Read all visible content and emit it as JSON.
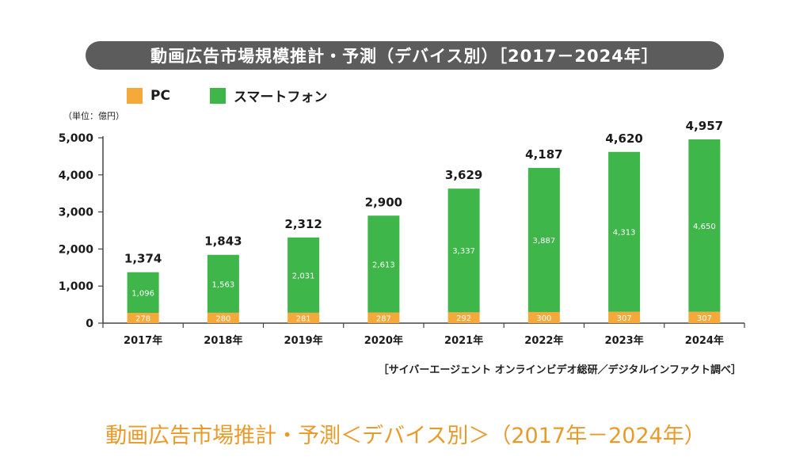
{
  "header": {
    "title": "動画広告市場規模推計・予測（デバイス別）［2017－2024年］"
  },
  "legend": [
    {
      "label": "PC",
      "color": "#f5a93b"
    },
    {
      "label": "スマートフォン",
      "color": "#3eb649"
    }
  ],
  "unit_label": "（単位：億円）",
  "source_text": "［サイバーエージェント オンラインビデオ総研／デジタルインファクト調べ］",
  "caption_text": "動画広告市場推計・予測＜デバイス別＞（2017年－2024年）",
  "chart_data": {
    "type": "bar",
    "stacked": true,
    "categories": [
      "2017年",
      "2018年",
      "2019年",
      "2020年",
      "2021年",
      "2022年",
      "2023年",
      "2024年"
    ],
    "series": [
      {
        "name": "PC",
        "color": "#f5a93b",
        "values": [
          278,
          280,
          281,
          287,
          292,
          300,
          307,
          307
        ]
      },
      {
        "name": "スマートフォン",
        "color": "#3eb649",
        "values": [
          1096,
          1563,
          2031,
          2613,
          3337,
          3887,
          4313,
          4650
        ]
      }
    ],
    "totals": [
      "1,374",
      "1,843",
      "2,312",
      "2,900",
      "3,629",
      "4,187",
      "4,620",
      "4,957"
    ],
    "segment_labels": {
      "PC": [
        "278",
        "280",
        "281",
        "287",
        "292",
        "300",
        "307",
        "307"
      ],
      "スマートフォン": [
        "1,096",
        "1,563",
        "2,031",
        "2,613",
        "3,337",
        "3,887",
        "4,313",
        "4,650"
      ]
    },
    "y_ticks": [
      "0",
      "1,000",
      "2,000",
      "3,000",
      "4,000",
      "5,000"
    ],
    "ylim": [
      0,
      5000
    ],
    "grid": false,
    "legend_position": "top-left"
  }
}
